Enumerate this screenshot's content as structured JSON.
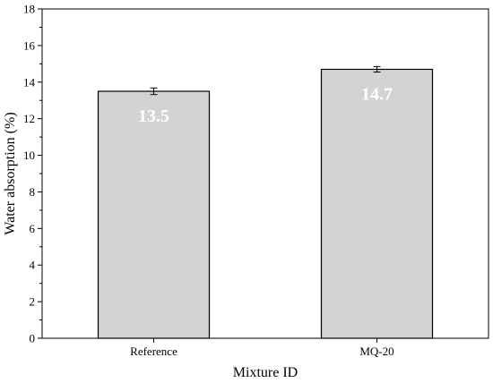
{
  "chart_data": {
    "type": "bar",
    "categories": [
      "Reference",
      "MQ-20"
    ],
    "values": [
      13.5,
      14.7
    ],
    "errors": [
      0.18,
      0.15
    ],
    "data_labels": [
      "13.5",
      "14.7"
    ],
    "title": "",
    "xlabel": "Mixture ID",
    "ylabel": "Water absorption (%)",
    "ylim": [
      0,
      18
    ],
    "yticks": [
      "0",
      "2",
      "4",
      "6",
      "8",
      "10",
      "12",
      "14",
      "16",
      "18"
    ],
    "grid": false,
    "legend": "none",
    "bar_color": "#d3d3d3",
    "bar_edge_color": "#000000",
    "data_label_color": "#ffffff"
  }
}
